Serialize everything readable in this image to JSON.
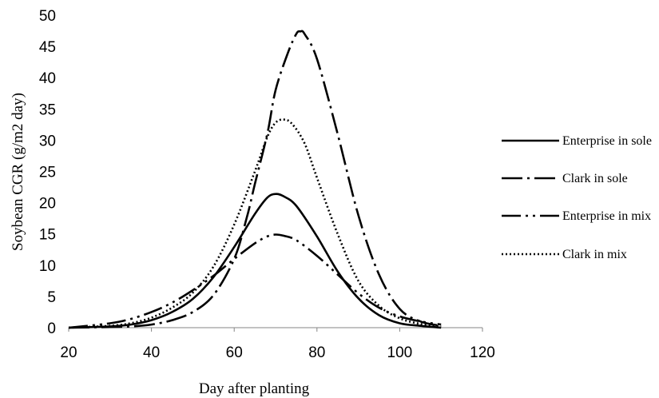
{
  "chart_data": {
    "type": "line",
    "title": "",
    "xlabel": "Day after planting",
    "ylabel": "Soybean CGR (g/m2 day)",
    "xlim": [
      20,
      120
    ],
    "ylim": [
      0,
      50
    ],
    "x_ticks": [
      "20",
      "40",
      "60",
      "80",
      "100",
      "120"
    ],
    "y_ticks": [
      "0",
      "5",
      "10",
      "15",
      "20",
      "25",
      "30",
      "35",
      "40",
      "45",
      "50"
    ],
    "grid": false,
    "legend_position": "right",
    "series": [
      {
        "name": "Enterprise in sole",
        "style": "solid",
        "x": [
          20,
          30,
          35,
          40,
          45,
          50,
          55,
          60,
          65,
          68,
          70,
          72,
          75,
          80,
          85,
          90,
          95,
          100,
          105,
          110
        ],
        "y": [
          0,
          0.2,
          0.5,
          1.2,
          2.5,
          4.6,
          8.1,
          12.9,
          18.2,
          20.8,
          21.4,
          21.0,
          19.5,
          14.6,
          9.0,
          4.7,
          2.0,
          0.7,
          0.3,
          0
        ]
      },
      {
        "name": "Clark in sole",
        "style": "dash-dot",
        "x": [
          20,
          30,
          35,
          40,
          45,
          50,
          55,
          60,
          63,
          65,
          68,
          70,
          73,
          75,
          76,
          77,
          80,
          85,
          90,
          95,
          100,
          105,
          110
        ],
        "y": [
          0,
          0.1,
          0.2,
          0.5,
          1.2,
          2.5,
          5.2,
          11.0,
          17.5,
          23.0,
          31.0,
          38.0,
          44.0,
          47.0,
          47.4,
          47.0,
          43.0,
          31.0,
          18.0,
          8.5,
          3.0,
          1.0,
          0.3
        ]
      },
      {
        "name": "Enterprise in mix",
        "style": "dash-dot-dot",
        "x": [
          20,
          30,
          35,
          40,
          45,
          50,
          55,
          60,
          65,
          68,
          70,
          72,
          75,
          80,
          85,
          90,
          95,
          100,
          105,
          110
        ],
        "y": [
          0,
          0.7,
          1.4,
          2.5,
          4.0,
          6.0,
          8.3,
          11.0,
          13.5,
          14.6,
          14.9,
          14.7,
          14.0,
          11.5,
          8.5,
          5.5,
          3.2,
          1.8,
          1.0,
          0.5
        ]
      },
      {
        "name": "Clark in mix",
        "style": "dotted",
        "x": [
          20,
          30,
          35,
          40,
          45,
          50,
          55,
          60,
          65,
          68,
          70,
          72,
          74,
          77,
          80,
          85,
          90,
          95,
          100,
          105,
          110
        ],
        "y": [
          0,
          0.3,
          0.7,
          1.6,
          3.2,
          5.6,
          9.8,
          16.5,
          25.0,
          30.5,
          32.8,
          33.3,
          32.6,
          29.5,
          24.0,
          15.0,
          7.5,
          3.5,
          1.5,
          0.6,
          0.2
        ]
      }
    ]
  }
}
